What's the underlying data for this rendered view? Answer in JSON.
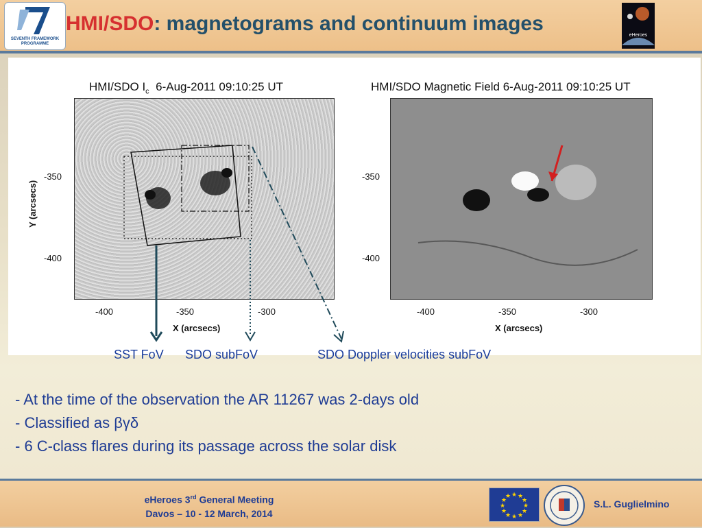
{
  "header": {
    "title_accent": "HMI/SDO",
    "title_rest": ": magnetograms and continuum images",
    "fp7_logo_text": "SEVENTH FRAMEWORK PROGRAMME",
    "eheroes_logo_text": "eHeroes"
  },
  "figure": {
    "left_panel": {
      "title": "HMI/SDO I",
      "title_sub": "c",
      "title_date": "6-Aug-2011 09:10:25 UT",
      "ylabel": "Y (arcsecs)",
      "xlabel": "X (arcsecs)",
      "xticks": [
        "-400",
        "-350",
        "-300"
      ],
      "yticks": [
        "-350",
        "-400"
      ]
    },
    "right_panel": {
      "title": "HMI/SDO Magnetic Field  6-Aug-2011 09:10:25 UT",
      "xlabel": "X (arcsecs)",
      "xticks": [
        "-400",
        "-350",
        "-300"
      ],
      "yticks": [
        "-350",
        "-400"
      ]
    }
  },
  "captions": {
    "sst": "SST FoV",
    "sdo_sub": "SDO subFoV",
    "doppler": "SDO Doppler velocities subFoV"
  },
  "bullets": [
    "- At the time of the observation the AR 11267 was 2-days old",
    "- Classified as βγδ",
    "- 6 C-class flares during its passage across the solar disk"
  ],
  "footer": {
    "meeting_prefix": "eHeroes 3",
    "meeting_sup": "rd",
    "meeting_suffix": " General Meeting",
    "dates": "Davos – 10 - 12 March, 2014",
    "author": "S.L. Guglielmino"
  },
  "colors": {
    "title": "#24506a",
    "accent": "#d63030",
    "body_text": "#1f3c94",
    "arrow": "#1f4a5a",
    "red_arrow": "#d22020"
  }
}
